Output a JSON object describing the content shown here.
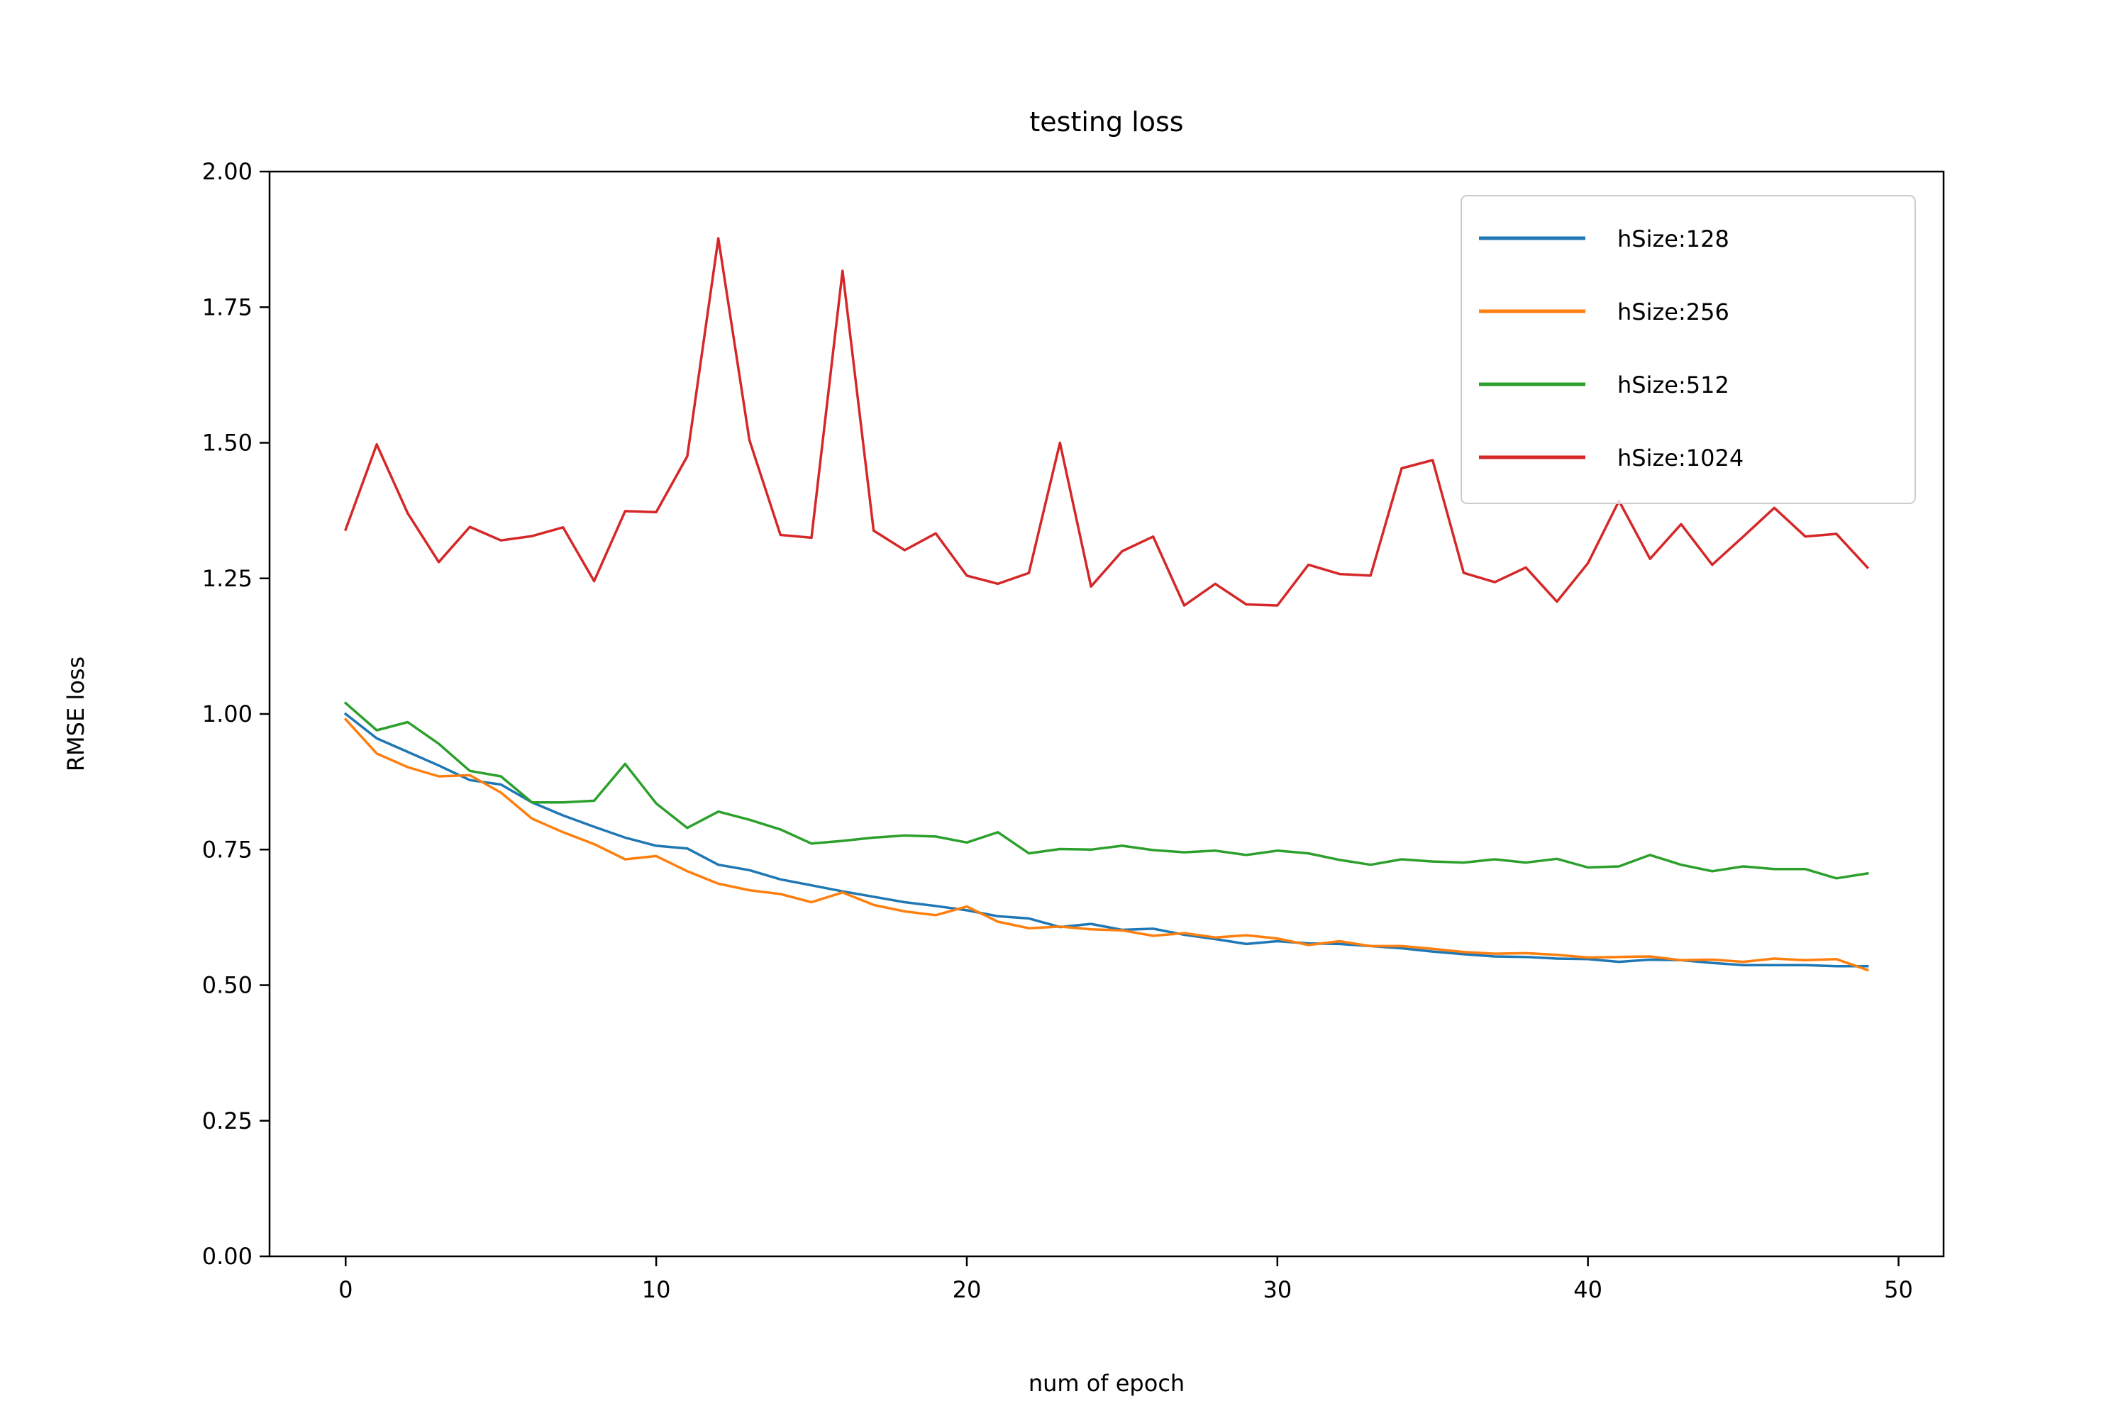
{
  "chart_data": {
    "type": "line",
    "title": "testing loss",
    "xlabel": "num of epoch",
    "ylabel": "RMSE loss",
    "xlim": [
      -2.45,
      51.45
    ],
    "ylim": [
      0,
      2
    ],
    "xticks": [
      0,
      10,
      20,
      30,
      40,
      50
    ],
    "xtick_labels": [
      "0",
      "10",
      "20",
      "30",
      "40",
      "50"
    ],
    "yticks": [
      0,
      0.25,
      0.5,
      0.75,
      1.0,
      1.25,
      1.5,
      1.75,
      2.0
    ],
    "ytick_labels": [
      "0.00",
      "0.25",
      "0.50",
      "0.75",
      "1.00",
      "1.25",
      "1.50",
      "1.75",
      "2.00"
    ],
    "grid": false,
    "legend_position": "top-right",
    "x": [
      0,
      1,
      2,
      3,
      4,
      5,
      6,
      7,
      8,
      9,
      10,
      11,
      12,
      13,
      14,
      15,
      16,
      17,
      18,
      19,
      20,
      21,
      22,
      23,
      24,
      25,
      26,
      27,
      28,
      29,
      30,
      31,
      32,
      33,
      34,
      35,
      36,
      37,
      38,
      39,
      40,
      41,
      42,
      43,
      44,
      45,
      46,
      47,
      48,
      49
    ],
    "series": [
      {
        "name": "hSize:128",
        "color": "#1f77b4",
        "values": [
          1.0,
          0.955,
          0.93,
          0.905,
          0.878,
          0.87,
          0.837,
          0.813,
          0.792,
          0.772,
          0.757,
          0.752,
          0.722,
          0.712,
          0.695,
          0.684,
          0.673,
          0.663,
          0.653,
          0.646,
          0.638,
          0.627,
          0.623,
          0.607,
          0.613,
          0.602,
          0.604,
          0.593,
          0.585,
          0.576,
          0.581,
          0.577,
          0.576,
          0.572,
          0.568,
          0.562,
          0.557,
          0.553,
          0.552,
          0.549,
          0.548,
          0.543,
          0.547,
          0.546,
          0.541,
          0.537,
          0.537,
          0.537,
          0.535,
          0.535
        ]
      },
      {
        "name": "hSize:256",
        "color": "#ff7f0e",
        "values": [
          0.99,
          0.927,
          0.902,
          0.885,
          0.887,
          0.855,
          0.807,
          0.782,
          0.76,
          0.732,
          0.738,
          0.71,
          0.687,
          0.675,
          0.668,
          0.653,
          0.671,
          0.648,
          0.636,
          0.629,
          0.645,
          0.617,
          0.605,
          0.608,
          0.603,
          0.601,
          0.591,
          0.596,
          0.588,
          0.592,
          0.586,
          0.574,
          0.581,
          0.572,
          0.572,
          0.567,
          0.561,
          0.558,
          0.559,
          0.556,
          0.551,
          0.552,
          0.553,
          0.546,
          0.547,
          0.543,
          0.549,
          0.546,
          0.548,
          0.528
        ]
      },
      {
        "name": "hSize:512",
        "color": "#2ca02c",
        "values": [
          1.02,
          0.97,
          0.985,
          0.945,
          0.895,
          0.885,
          0.837,
          0.837,
          0.84,
          0.908,
          0.835,
          0.79,
          0.82,
          0.805,
          0.787,
          0.761,
          0.766,
          0.772,
          0.776,
          0.774,
          0.763,
          0.782,
          0.743,
          0.751,
          0.75,
          0.757,
          0.749,
          0.745,
          0.748,
          0.74,
          0.748,
          0.743,
          0.731,
          0.722,
          0.732,
          0.728,
          0.726,
          0.732,
          0.726,
          0.733,
          0.717,
          0.719,
          0.74,
          0.722,
          0.71,
          0.719,
          0.714,
          0.714,
          0.697,
          0.706
        ]
      },
      {
        "name": "hSize:1024",
        "color": "#d62728",
        "values": [
          1.34,
          1.497,
          1.37,
          1.28,
          1.345,
          1.32,
          1.328,
          1.344,
          1.245,
          1.374,
          1.372,
          1.475,
          1.877,
          1.505,
          1.33,
          1.325,
          1.817,
          1.338,
          1.302,
          1.333,
          1.255,
          1.24,
          1.26,
          1.5,
          1.235,
          1.3,
          1.327,
          1.2,
          1.24,
          1.202,
          1.2,
          1.275,
          1.258,
          1.255,
          1.453,
          1.468,
          1.26,
          1.243,
          1.27,
          1.207,
          1.278,
          1.393,
          1.286,
          1.35,
          1.275,
          1.327,
          1.38,
          1.327,
          1.332,
          1.27
        ]
      }
    ]
  }
}
